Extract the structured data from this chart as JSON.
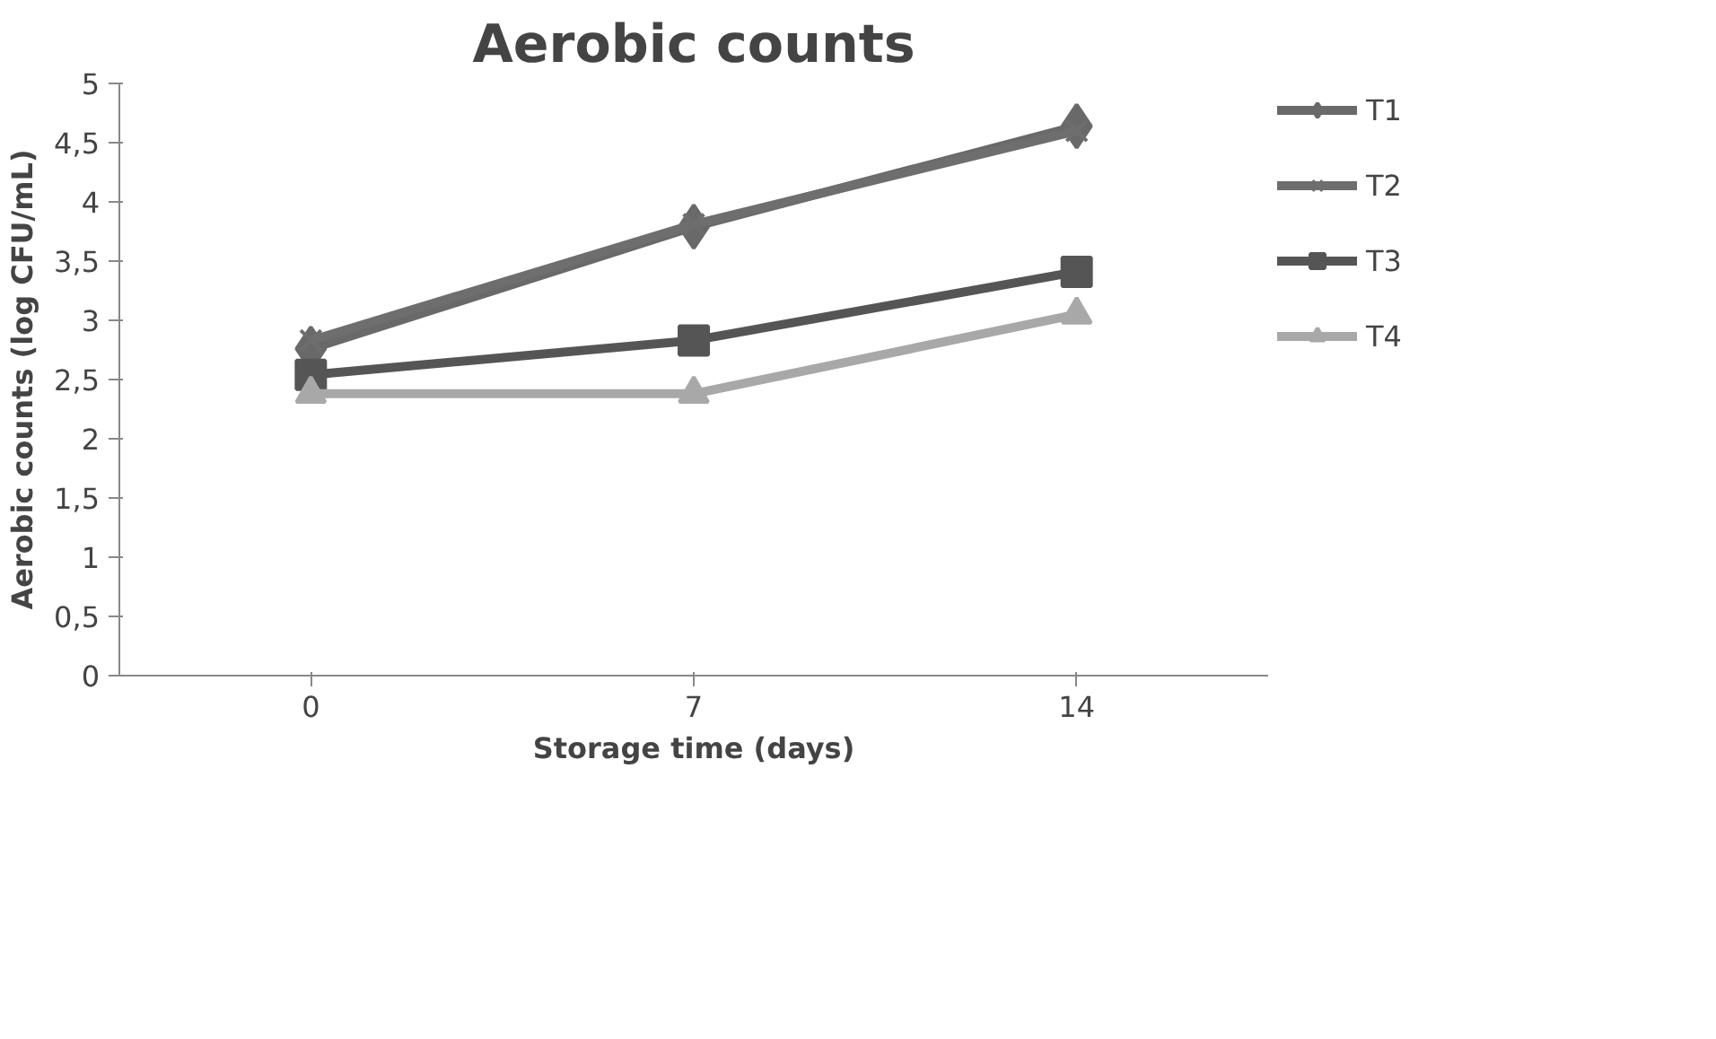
{
  "chart_data": {
    "type": "line",
    "title": "Aerobic counts",
    "xlabel": "Storage time (days)",
    "ylabel": "Aerobic counts (log CFU/mL)",
    "categories": [
      "0",
      "7",
      "14"
    ],
    "series": [
      {
        "name": "T1",
        "color": "#696969",
        "values": [
          2.76,
          3.79,
          4.64
        ],
        "marker": "diamond"
      },
      {
        "name": "T2",
        "color": "#6e6e6e",
        "values": [
          2.83,
          3.81,
          4.6
        ],
        "marker": "cross"
      },
      {
        "name": "T3",
        "color": "#555555",
        "values": [
          2.54,
          2.83,
          3.41
        ],
        "marker": "square"
      },
      {
        "name": "T4",
        "color": "#a8a8a8",
        "values": [
          2.38,
          2.38,
          3.05
        ],
        "marker": "triangle"
      }
    ],
    "ylim": [
      0,
      5
    ],
    "yticks": [
      0,
      {
        "value": 0.5,
        "label": "0,5"
      },
      1,
      {
        "value": 1.5,
        "label": "1,5"
      },
      2,
      {
        "value": 2.5,
        "label": "2,5"
      },
      3,
      {
        "value": 3.5,
        "label": "3,5"
      },
      4,
      {
        "value": 4.5,
        "label": "4,5"
      },
      5
    ],
    "grid": false,
    "legend": "right",
    "line_style": "solid"
  }
}
